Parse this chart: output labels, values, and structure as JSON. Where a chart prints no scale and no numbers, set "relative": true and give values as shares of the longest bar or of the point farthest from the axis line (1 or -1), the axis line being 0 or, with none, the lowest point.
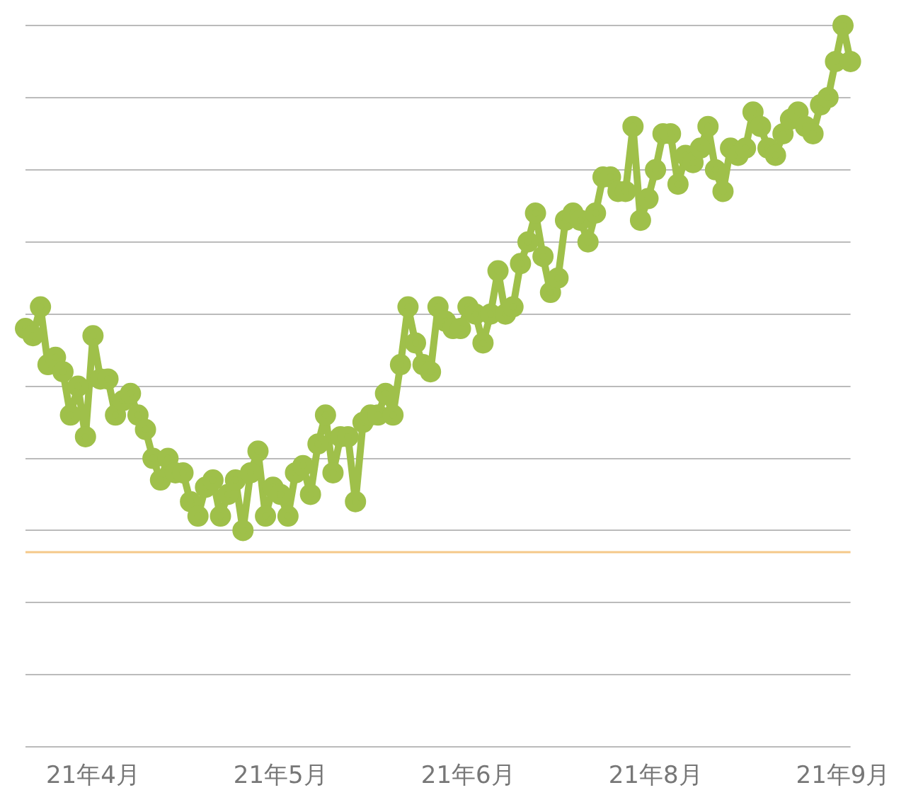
{
  "chart_data": {
    "type": "line",
    "relative": true,
    "categories": [
      null,
      null,
      null,
      null,
      null,
      null,
      null,
      null,
      null,
      "21年4月",
      null,
      null,
      null,
      null,
      null,
      null,
      null,
      null,
      null,
      null,
      null,
      null,
      null,
      null,
      null,
      null,
      null,
      null,
      null,
      null,
      null,
      null,
      null,
      null,
      "21年5月",
      null,
      null,
      null,
      null,
      null,
      null,
      null,
      null,
      null,
      null,
      null,
      null,
      null,
      null,
      null,
      null,
      null,
      null,
      null,
      null,
      null,
      null,
      null,
      null,
      "21年6月",
      null,
      null,
      null,
      null,
      null,
      null,
      null,
      null,
      null,
      null,
      null,
      null,
      null,
      null,
      null,
      null,
      null,
      null,
      null,
      null,
      null,
      null,
      null,
      null,
      "21年8月",
      null,
      null,
      null,
      null,
      null,
      null,
      null,
      null,
      null,
      null,
      null,
      null,
      null,
      null,
      null,
      null,
      null,
      null,
      null,
      null,
      null,
      null,
      null,
      null,
      "21年9月",
      null
    ],
    "series": [
      {
        "color": "#9fc04a",
        "values": [
          0.58,
          0.57,
          0.61,
          0.53,
          0.54,
          0.52,
          0.46,
          0.5,
          0.43,
          0.57,
          0.51,
          0.51,
          0.46,
          0.48,
          0.49,
          0.46,
          0.44,
          0.4,
          0.37,
          0.4,
          0.38,
          0.38,
          0.34,
          0.32,
          0.36,
          0.37,
          0.32,
          0.35,
          0.37,
          0.3,
          0.38,
          0.41,
          0.32,
          0.36,
          0.35,
          0.32,
          0.38,
          0.39,
          0.35,
          0.42,
          0.46,
          0.38,
          0.43,
          0.43,
          0.34,
          0.45,
          0.46,
          0.46,
          0.49,
          0.46,
          0.53,
          0.61,
          0.56,
          0.53,
          0.52,
          0.61,
          0.59,
          0.58,
          0.58,
          0.61,
          0.6,
          0.56,
          0.6,
          0.66,
          0.6,
          0.61,
          0.67,
          0.7,
          0.74,
          0.68,
          0.63,
          0.65,
          0.73,
          0.74,
          0.73,
          0.7,
          0.74,
          0.79,
          0.79,
          0.77,
          0.77,
          0.86,
          0.73,
          0.76,
          0.8,
          0.85,
          0.85,
          0.78,
          0.82,
          0.81,
          0.83,
          0.86,
          0.8,
          0.77,
          0.83,
          0.82,
          0.83,
          0.88,
          0.86,
          0.83,
          0.82,
          0.85,
          0.87,
          0.88,
          0.86,
          0.85,
          0.89,
          0.9,
          0.95,
          1.0,
          0.95
        ]
      }
    ],
    "ref_lines": [
      {
        "axis": "y",
        "value": 0.27,
        "color": "#f5c98a"
      }
    ],
    "grid": true,
    "legend": false,
    "marker": "circle",
    "line_style": "solid"
  }
}
